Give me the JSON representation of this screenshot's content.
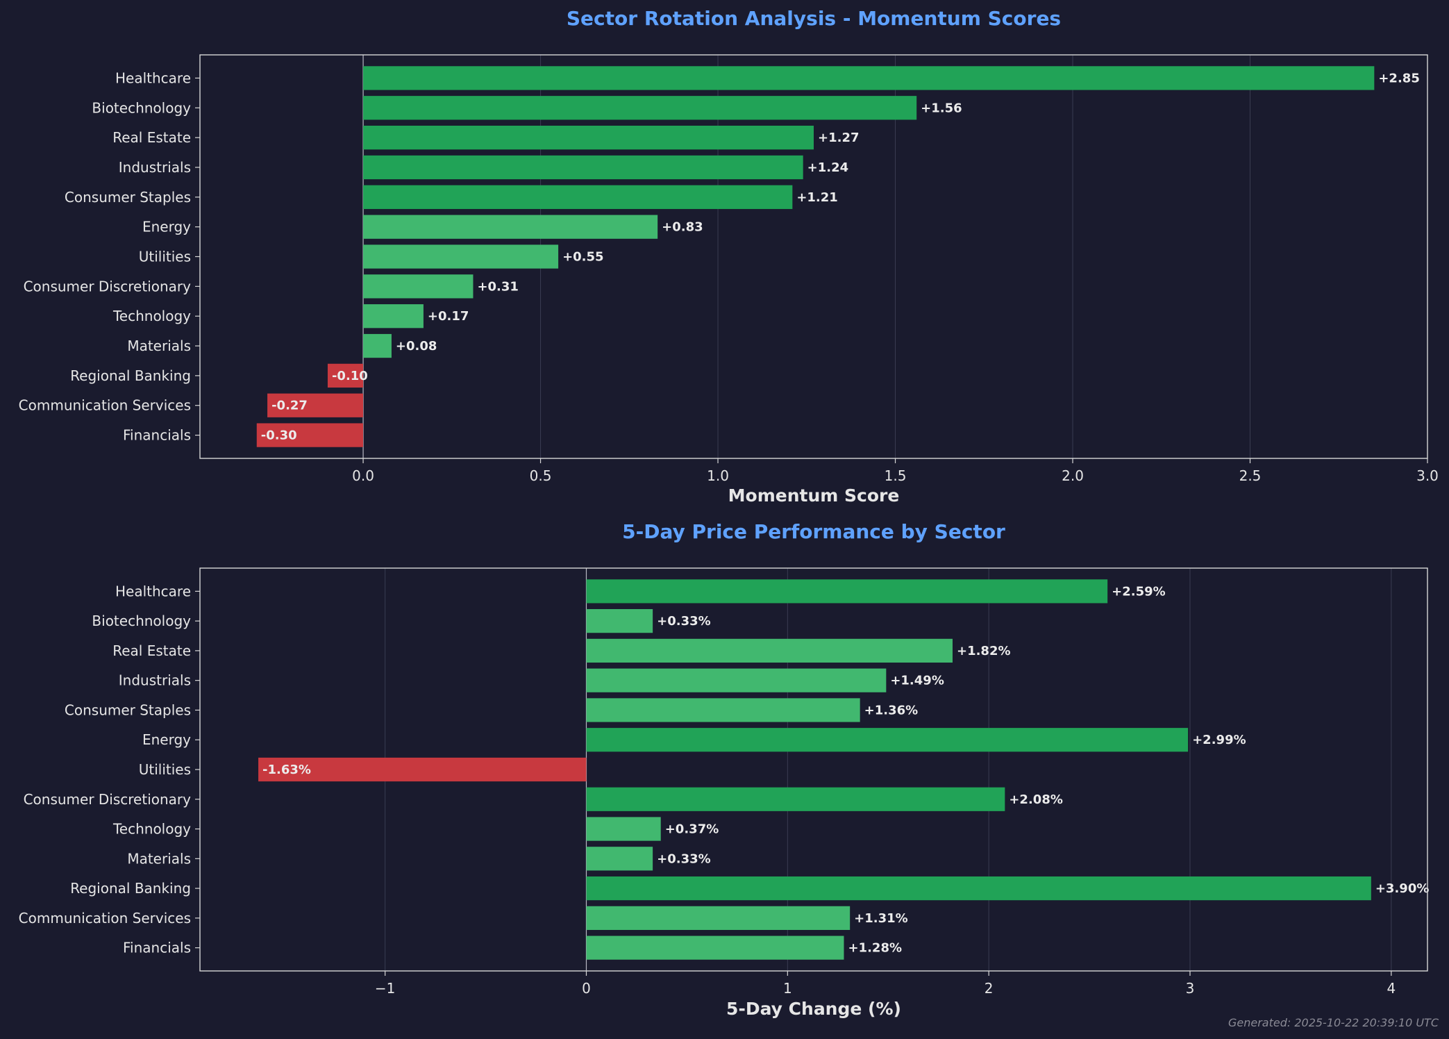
{
  "footer": "Generated: 2025-10-22 20:39:10 UTC",
  "colors": {
    "background": "#1a1b2e",
    "title": "#5fa2ff",
    "strong_positive": "#21a357",
    "positive": "#41b86f",
    "negative": "#c8393f",
    "text": "#e6e6e6"
  },
  "chart_data": [
    {
      "type": "bar",
      "orientation": "horizontal",
      "title": "Sector Rotation Analysis - Momentum Scores",
      "xlabel": "Momentum Score",
      "ylabel": "",
      "categories": [
        "Healthcare",
        "Biotechnology",
        "Real Estate",
        "Industrials",
        "Consumer Staples",
        "Energy",
        "Utilities",
        "Consumer Discretionary",
        "Technology",
        "Materials",
        "Regional Banking",
        "Communication Services",
        "Financials"
      ],
      "values": [
        2.85,
        1.56,
        1.27,
        1.24,
        1.21,
        0.83,
        0.55,
        0.31,
        0.17,
        0.08,
        -0.1,
        -0.27,
        -0.3
      ],
      "value_labels": [
        "+2.85",
        "+1.56",
        "+1.27",
        "+1.24",
        "+1.21",
        "+0.83",
        "+0.55",
        "+0.31",
        "+0.17",
        "+0.08",
        "-0.10",
        "-0.27",
        "-0.30"
      ],
      "xlim": [
        -0.46,
        3.0
      ],
      "xticks": [
        0.0,
        0.5,
        1.0,
        1.5,
        2.0,
        2.5,
        3.0
      ],
      "xtick_labels": [
        "0.0",
        "0.5",
        "1.0",
        "1.5",
        "2.0",
        "2.5",
        "3.0"
      ],
      "grid": "vertical",
      "legend": "none"
    },
    {
      "type": "bar",
      "orientation": "horizontal",
      "title": "5-Day Price Performance by Sector",
      "xlabel": "5-Day Change (%)",
      "ylabel": "",
      "categories": [
        "Healthcare",
        "Biotechnology",
        "Real Estate",
        "Industrials",
        "Consumer Staples",
        "Energy",
        "Utilities",
        "Consumer Discretionary",
        "Technology",
        "Materials",
        "Regional Banking",
        "Communication Services",
        "Financials"
      ],
      "values": [
        2.59,
        0.33,
        1.82,
        1.49,
        1.36,
        2.99,
        -1.63,
        2.08,
        0.37,
        0.33,
        3.9,
        1.31,
        1.28
      ],
      "value_labels": [
        "+2.59%",
        "+0.33%",
        "+1.82%",
        "+1.49%",
        "+1.36%",
        "+2.99%",
        "-1.63%",
        "+2.08%",
        "+0.37%",
        "+0.33%",
        "+3.90%",
        "+1.31%",
        "+1.28%"
      ],
      "xlim": [
        -1.92,
        4.18
      ],
      "xticks": [
        -1,
        0,
        1,
        2,
        3,
        4
      ],
      "xtick_labels": [
        "−1",
        "0",
        "1",
        "2",
        "3",
        "4"
      ],
      "grid": "vertical",
      "legend": "none"
    }
  ]
}
